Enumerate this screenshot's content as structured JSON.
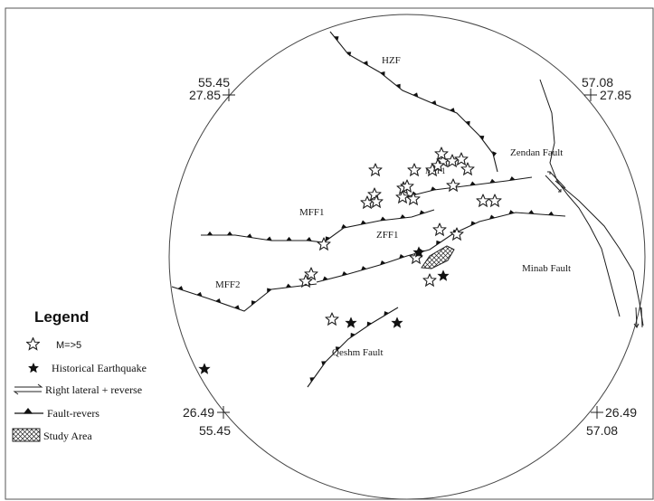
{
  "map": {
    "coordinates": {
      "top_left": {
        "lon": "55.45",
        "lat": "27.85"
      },
      "top_right": {
        "lon": "57.08",
        "lat": "27.85"
      },
      "bottom_left": {
        "lat": "26.49",
        "lon": "55.45"
      },
      "bottom_right": {
        "lat": "26.49",
        "lon": "57.08"
      }
    },
    "fault_labels": {
      "hzf": "HZF",
      "zendan": "Zendan Fault",
      "mff1_small": "MFF1",
      "mff1": "MFF1",
      "zff1": "ZFF1",
      "mff2": "MFF2",
      "minab": "Minab Fault",
      "qeshm": "Qeshm Fault"
    }
  },
  "legend": {
    "title": "Legend",
    "items": [
      {
        "symbol": "open-star-icon",
        "label": "M=>5"
      },
      {
        "symbol": "filled-star-icon",
        "label": "Historical Earthquake"
      },
      {
        "symbol": "right-lateral-arrows-icon",
        "label": "Right lateral + reverse"
      },
      {
        "symbol": "fault-reverse-icon",
        "label": "Fault-revers"
      },
      {
        "symbol": "hatched-box-icon",
        "label": "Study Area"
      }
    ]
  },
  "colors": {
    "line": "#1a1a1a",
    "frame": "#555555",
    "background": "#ffffff"
  }
}
